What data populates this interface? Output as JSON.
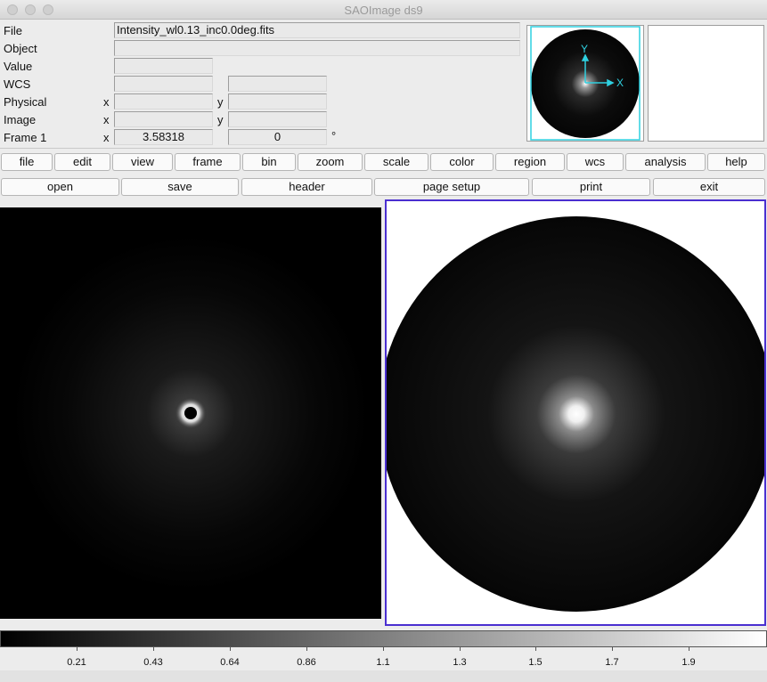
{
  "window": {
    "title": "SAOImage ds9"
  },
  "info": {
    "labels": {
      "file": "File",
      "object": "Object",
      "value": "Value",
      "wcs": "WCS",
      "physical": "Physical",
      "image": "Image",
      "frame": "Frame 1"
    },
    "axis_x": "x",
    "axis_y": "y",
    "file_value": "Intensity_wl0.13_inc0.0deg.fits",
    "object_value": "",
    "value_value": "",
    "frame_x": "3.58318",
    "frame_y": "0",
    "degree_symbol": "°"
  },
  "panner": {
    "axis_y": "Y",
    "axis_x": "X",
    "colors": {
      "compass": "#2fd0e0"
    }
  },
  "menu_bar": [
    "file",
    "edit",
    "view",
    "frame",
    "bin",
    "zoom",
    "scale",
    "color",
    "region",
    "wcs",
    "analysis",
    "help"
  ],
  "button_bar": [
    "open",
    "save",
    "header",
    "page setup",
    "print",
    "exit"
  ],
  "colorbar": {
    "ticks": [
      "0.21",
      "0.43",
      "0.64",
      "0.86",
      "1.1",
      "1.3",
      "1.5",
      "1.7",
      "1.9"
    ],
    "colormap": "grey"
  },
  "colors": {
    "active_frame_border": "#4a2fd0"
  }
}
